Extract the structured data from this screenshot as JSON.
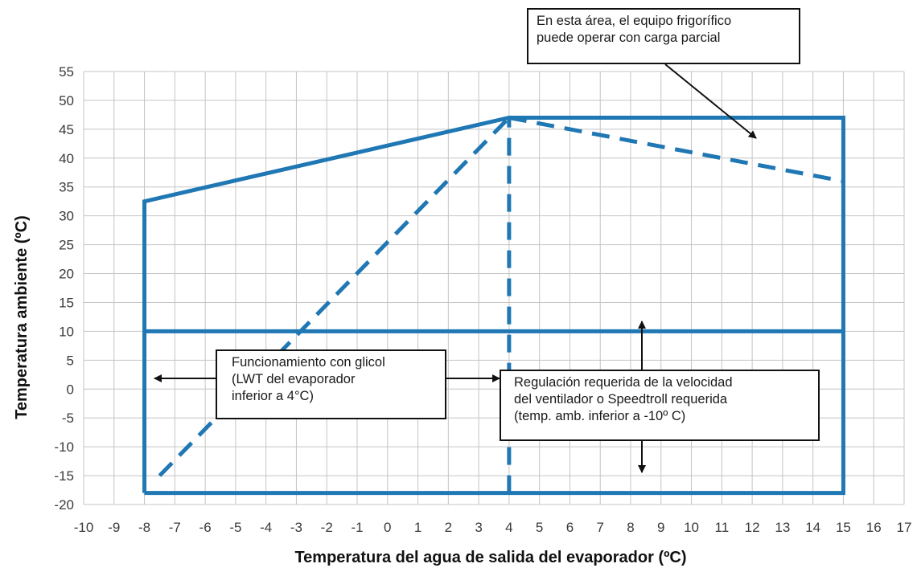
{
  "chart_data": {
    "type": "line",
    "title": "",
    "xlabel": "Temperatura del agua de salida del evaporador (ºC)",
    "ylabel": "Temperatura ambiente (ºC)",
    "xlim": [
      -10,
      17
    ],
    "ylim": [
      -20,
      55
    ],
    "x_ticks": [
      "-10",
      "-9",
      "-8",
      "-7",
      "-6",
      "-5",
      "-4",
      "-3",
      "-2",
      "-1",
      "0",
      "1",
      "2",
      "3",
      "4",
      "5",
      "6",
      "7",
      "8",
      "9",
      "10",
      "11",
      "12",
      "13",
      "14",
      "15",
      "16",
      "17"
    ],
    "y_ticks": [
      "55",
      "50",
      "45",
      "40",
      "35",
      "30",
      "25",
      "20",
      "15",
      "10",
      "5",
      "0",
      "-5",
      "-10",
      "-15",
      "-20"
    ],
    "grid": true,
    "series": [
      {
        "style": "solid",
        "color": "#1f77b4",
        "points": [
          [
            -8,
            -18
          ],
          [
            -8,
            32.5
          ],
          [
            4,
            47
          ],
          [
            15,
            47
          ],
          [
            15,
            -18
          ],
          [
            -8,
            -18
          ]
        ]
      },
      {
        "style": "solid",
        "color": "#1f77b4",
        "points": [
          [
            -8,
            10
          ],
          [
            15,
            10
          ]
        ]
      },
      {
        "style": "dashed",
        "color": "#1f77b4",
        "points": [
          [
            4,
            -18
          ],
          [
            4,
            47
          ]
        ]
      },
      {
        "style": "dashed",
        "color": "#1f77b4",
        "points": [
          [
            -7.5,
            -15
          ],
          [
            4,
            47
          ]
        ]
      },
      {
        "style": "dashed",
        "color": "#1f77b4",
        "points": [
          [
            4,
            47
          ],
          [
            15,
            36
          ]
        ]
      }
    ],
    "annotations": [
      {
        "name": "partial-load-note",
        "lines": [
          "En esta área, el equipo frigorífico",
          "puede operar con carga parcial"
        ]
      },
      {
        "name": "glycol-note",
        "lines": [
          "Funcionamiento con glicol",
          "(LWT  del  evaporador",
          "inferior a 4°C)"
        ]
      },
      {
        "name": "fan-speed-note",
        "lines": [
          "Regulación requerida de la  velocidad",
          "del  ventilador  o  Speedtroll  requerida",
          "(temp. amb. inferior a -10º C)"
        ]
      }
    ]
  }
}
